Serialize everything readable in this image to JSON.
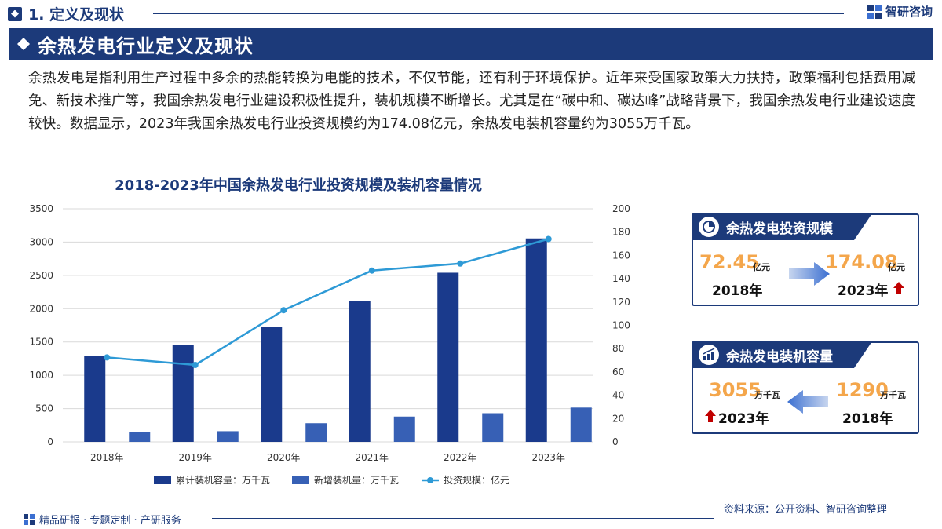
{
  "header": {
    "section_title": "1. 定义及现状",
    "brand_name": "智研咨询"
  },
  "banner": {
    "title": "余热发电行业定义及现状"
  },
  "intro": {
    "text": "余热发电是指利用生产过程中多余的热能转换为电能的技术，不仅节能，还有利于环境保护。近年来受国家政策大力扶持，政策福利包括费用减免、新技术推广等，我国余热发电行业建设积极性提升，装机规模不断增长。尤其是在“碳中和、碳达峰”战略背景下，我国余热发电行业建设速度较快。数据显示，2023年我国余热发电行业投资规模约为174.08亿元，余热发电装机容量约为3055万千瓦。"
  },
  "chart_data": {
    "type": "bar",
    "title": "2018-2023年中国余热发电行业投资规模及装机容量情况",
    "categories": [
      "2018年",
      "2019年",
      "2020年",
      "2021年",
      "2022年",
      "2023年"
    ],
    "series": [
      {
        "name": "累计装机容量：万千瓦",
        "type": "bar",
        "axis": "left",
        "color": "#1a3a8c",
        "values": [
          1290,
          1450,
          1730,
          2110,
          2540,
          3055
        ]
      },
      {
        "name": "新增装机量：万千瓦",
        "type": "bar",
        "axis": "left",
        "color": "#3760b5",
        "values": [
          150,
          160,
          280,
          380,
          430,
          515
        ]
      },
      {
        "name": "投资规模：亿元",
        "type": "line",
        "axis": "right",
        "color": "#2e9ad6",
        "values": [
          72.45,
          66,
          113,
          147,
          153,
          174.08
        ]
      }
    ],
    "ylim": [
      0,
      3500
    ],
    "yticks": [
      0,
      500,
      1000,
      1500,
      2000,
      2500,
      3000,
      3500
    ],
    "y2lim": [
      0,
      200
    ],
    "y2ticks": [
      0,
      20,
      40,
      60,
      80,
      100,
      120,
      140,
      160,
      180,
      200
    ],
    "grid": true,
    "legend_position": "bottom"
  },
  "panels": {
    "investment": {
      "title": "余热发电投资规模",
      "left_value": "72.45",
      "left_unit": "亿元",
      "left_year": "2018年",
      "right_value": "174.08",
      "right_unit": "亿元",
      "right_year": "2023年",
      "icon": "pie-chart-icon"
    },
    "capacity": {
      "title": "余热发电装机容量",
      "left_value": "3055",
      "left_unit": "万千瓦",
      "left_year": "2023年",
      "right_value": "1290",
      "right_unit": "万千瓦",
      "right_year": "2018年",
      "icon": "bar-trend-icon"
    }
  },
  "footer": {
    "slogan": "精品研报 · 专题定制 · 产研服务",
    "source": "资料来源：公开资料、智研咨询整理"
  },
  "colors": {
    "brand": "#1c3a7a",
    "accent_orange": "#f4a64b",
    "up_arrow": "#c00000"
  }
}
